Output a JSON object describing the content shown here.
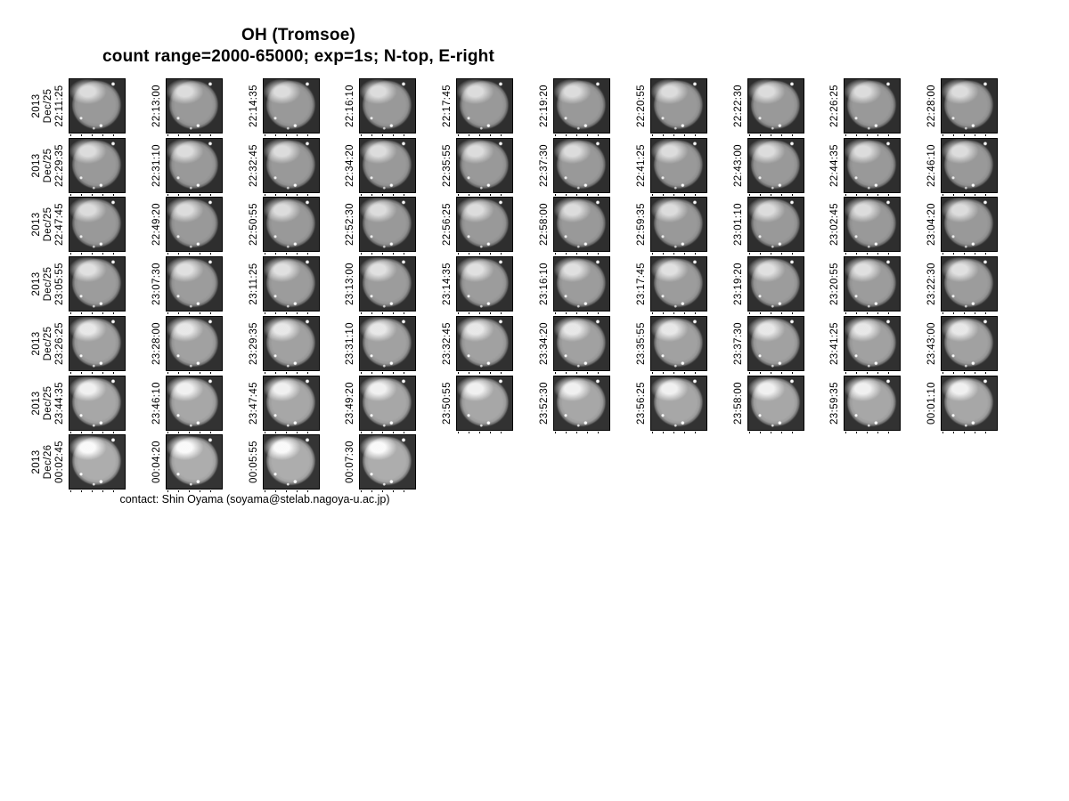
{
  "header": {
    "title": "OH (Tromsoe)",
    "subtitle": "count range=2000-65000; exp=1s; N-top, E-right"
  },
  "footer": {
    "contact": "contact: Shin Oyama (soyama@stelab.nagoya-u.ac.jp)"
  },
  "colors": {
    "background": "#ffffff",
    "text": "#000000",
    "tile_background": "#2e2e2e",
    "tile_border": "#000000",
    "disc": "#979797",
    "disc_highlight": "#e0e0e0",
    "star": "#ffffff"
  },
  "chart_data": {
    "type": "table",
    "title": "OH (Tromsoe)",
    "subtitle": "count range=2000-65000; exp=1s; N-top, E-right",
    "description": "Montage of all-sky OH airglow camera frames, one thumbnail per exposure, labelled with frame time; rows of 10 frames",
    "count_range": [
      2000,
      65000
    ],
    "exposure": "1s",
    "orientation": "N-top, E-right",
    "rows": [
      {
        "year": "2013",
        "date": "Dec/25",
        "times": [
          "22:11:25",
          "22:13:00",
          "22:14:35",
          "22:16:10",
          "22:17:45",
          "22:19:20",
          "22:20:55",
          "22:22:30",
          "22:26:25",
          "22:28:00"
        ]
      },
      {
        "year": "2013",
        "date": "Dec/25",
        "times": [
          "22:29:35",
          "22:31:10",
          "22:32:45",
          "22:34:20",
          "22:35:55",
          "22:37:30",
          "22:41:25",
          "22:43:00",
          "22:44:35",
          "22:46:10"
        ]
      },
      {
        "year": "2013",
        "date": "Dec/25",
        "times": [
          "22:47:45",
          "22:49:20",
          "22:50:55",
          "22:52:30",
          "22:56:25",
          "22:58:00",
          "22:59:35",
          "23:01:10",
          "23:02:45",
          "23:04:20"
        ]
      },
      {
        "year": "2013",
        "date": "Dec/25",
        "times": [
          "23:05:55",
          "23:07:30",
          "23:11:25",
          "23:13:00",
          "23:14:35",
          "23:16:10",
          "23:17:45",
          "23:19:20",
          "23:20:55",
          "23:22:30"
        ]
      },
      {
        "year": "2013",
        "date": "Dec/25",
        "times": [
          "23:26:25",
          "23:28:00",
          "23:29:35",
          "23:31:10",
          "23:32:45",
          "23:34:20",
          "23:35:55",
          "23:37:30",
          "23:41:25",
          "23:43:00"
        ]
      },
      {
        "year": "2013",
        "date": "Dec/25",
        "times": [
          "23:44:35",
          "23:46:10",
          "23:47:45",
          "23:49:20",
          "23:50:55",
          "23:52:30",
          "23:56:25",
          "23:58:00",
          "23:59:35",
          "00:01:10"
        ]
      },
      {
        "year": "2013",
        "date": "Dec/26",
        "times": [
          "00:02:45",
          "00:04:20",
          "00:05:55",
          "00:07:30"
        ]
      }
    ]
  }
}
